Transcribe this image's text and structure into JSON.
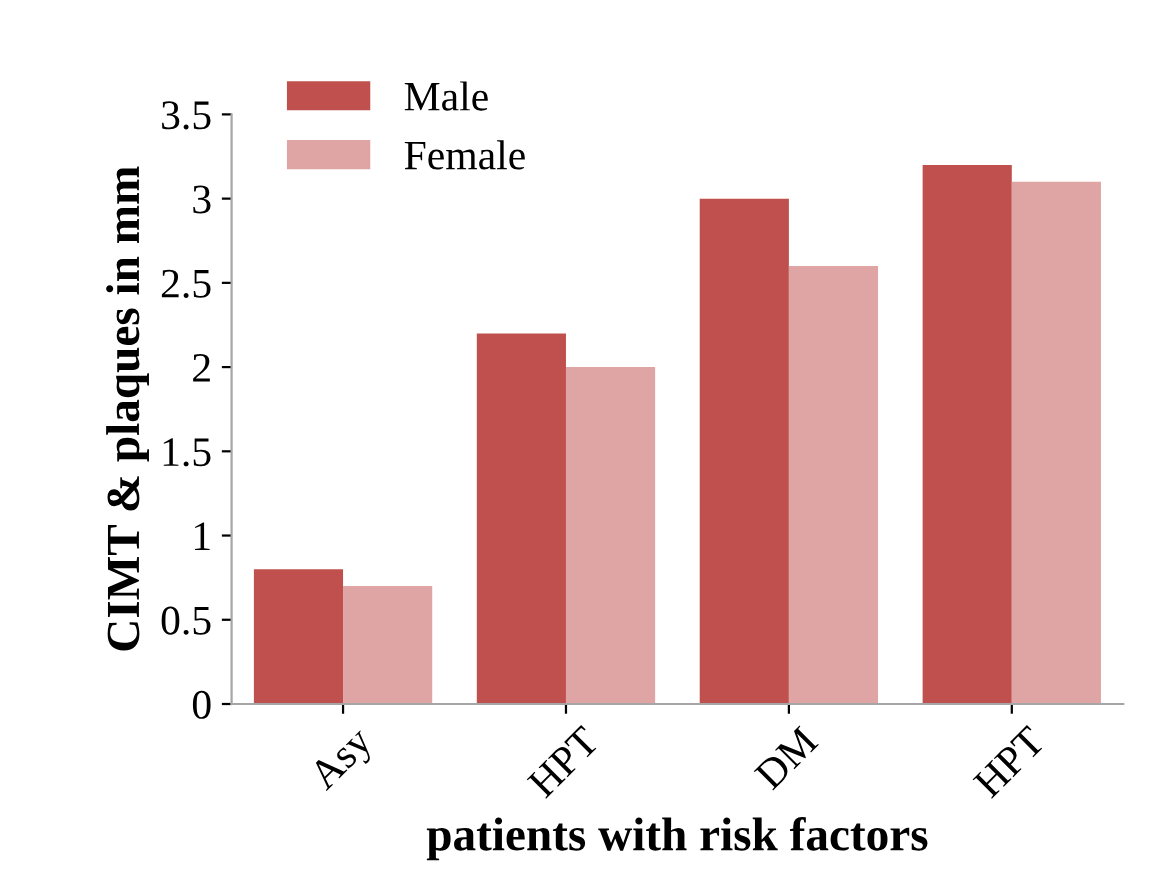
{
  "chart_data": {
    "type": "bar",
    "xlabel": "patients with risk factors",
    "ylabel": "CIMT & plaques in mm",
    "categories": [
      "Asy",
      "HPT",
      "DM",
      "HPT"
    ],
    "series": [
      {
        "name": "Male",
        "color": "#c0504d",
        "values": [
          0.8,
          2.2,
          3.0,
          3.2
        ]
      },
      {
        "name": "Female",
        "color": "#dfa5a4",
        "values": [
          0.7,
          2.0,
          2.6,
          3.1
        ]
      }
    ],
    "ylim": [
      0,
      3.5
    ],
    "yticks": [
      0,
      0.5,
      1,
      1.5,
      2,
      2.5,
      3,
      3.5
    ],
    "legend": "top left",
    "grid": false
  }
}
